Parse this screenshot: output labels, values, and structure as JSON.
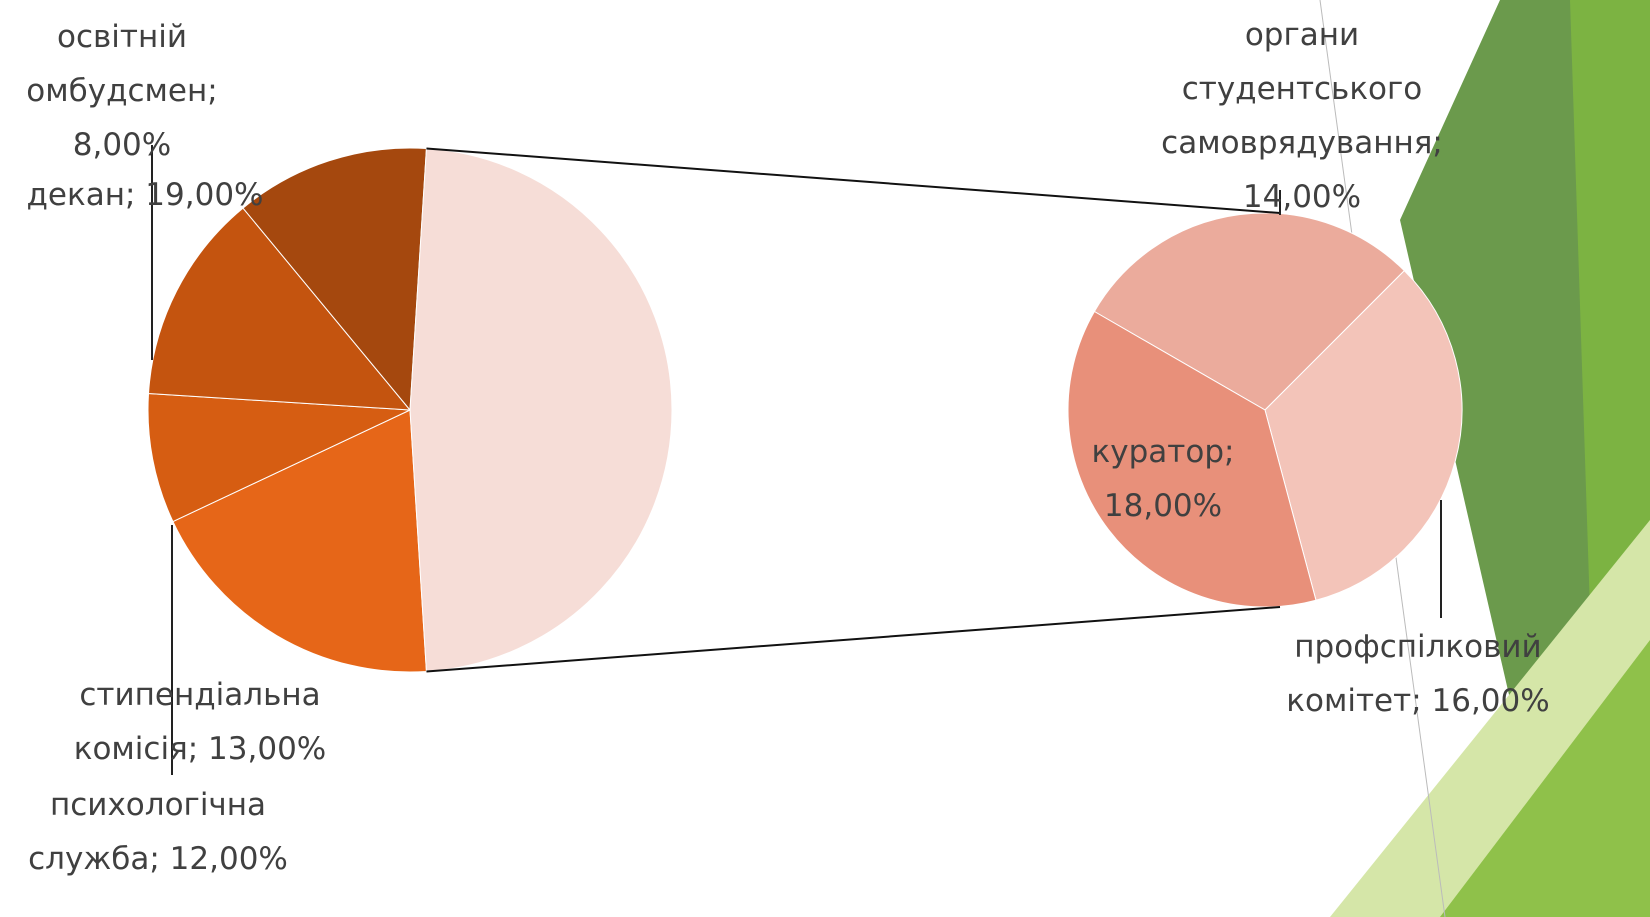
{
  "chart_data": {
    "type": "pie-of-pie",
    "label_separator": "; ",
    "categories": [
      "декан",
      "освітній омбудсмен",
      "стипендіальна комісія",
      "психологічна служба",
      null
    ],
    "values": [
      19,
      8,
      13,
      12,
      48
    ],
    "value_labels": [
      "19,00%",
      "8,00%",
      "13,00%",
      "12,00%",
      null
    ],
    "colors": [
      "#e66618",
      "#d65d12",
      "#c4540f",
      "#a5480e",
      "#f6ddd7"
    ],
    "secondary": {
      "categories": [
        "органи студентського самоврядування",
        "профспілковий комітет",
        "куратор"
      ],
      "values": [
        14,
        16,
        18
      ],
      "value_labels": [
        "14,00%",
        "16,00%",
        "18,00%"
      ],
      "colors": [
        "#ebab9c",
        "#f3c4b9",
        "#e8907a"
      ]
    }
  }
}
